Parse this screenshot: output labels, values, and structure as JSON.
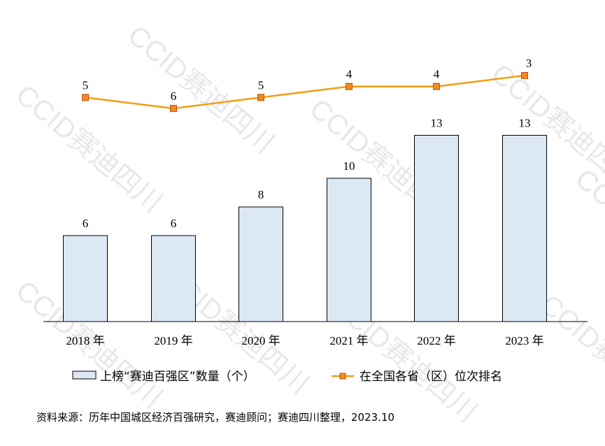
{
  "chart_data": {
    "type": "bar+line",
    "categories": [
      "2018 年",
      "2019 年",
      "2020 年",
      "2021 年",
      "2022 年",
      "2023 年"
    ],
    "series": [
      {
        "name": "上榜“赛迪百强区”数量（个）",
        "type": "bar",
        "values": [
          6,
          6,
          8,
          10,
          13,
          13
        ],
        "color": "#dde8f5",
        "stroke": "#000000"
      },
      {
        "name": "在全国各省（区）位次排名",
        "type": "line",
        "values": [
          5,
          6,
          5,
          4,
          4,
          3
        ],
        "color": "#f39c12",
        "marker_fill": "#f08a24"
      }
    ],
    "legend": {
      "position": "bottom"
    },
    "grid": false,
    "source": "资料来源：历年中国城区经济百强研究，赛迪顾问；赛迪四川整理，2023.10"
  },
  "watermark": {
    "text": "CCID赛迪四川",
    "color": "#e8e8e8"
  }
}
